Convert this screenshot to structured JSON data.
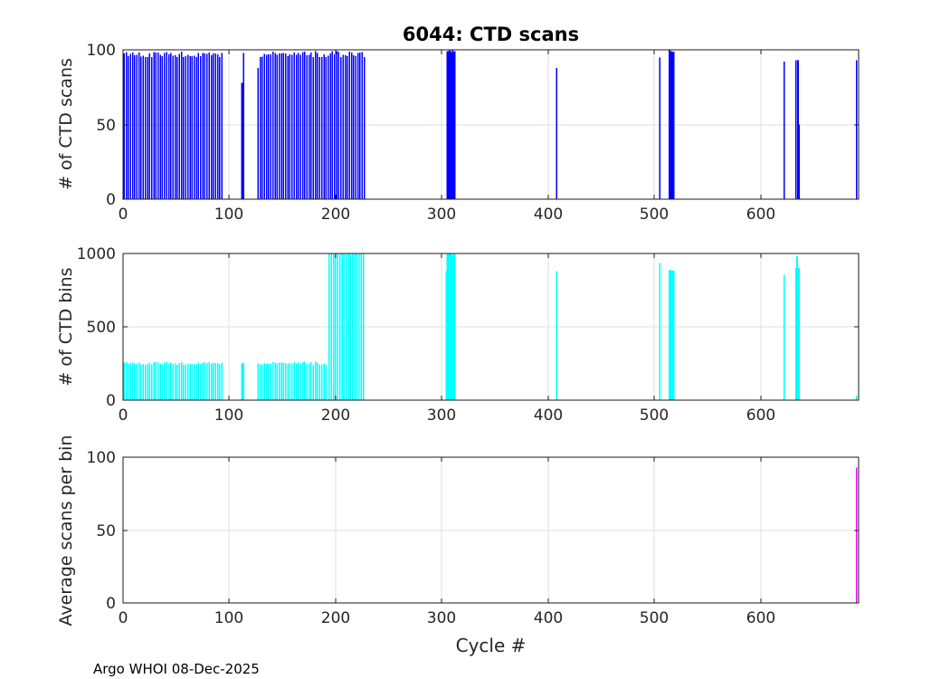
{
  "title": "6044: CTD scans",
  "x_axis": {
    "label": "Cycle #",
    "ticks": [
      0,
      100,
      200,
      300,
      400,
      500,
      600
    ],
    "min": 0,
    "max": 692
  },
  "footer": "Argo WHOI 08-Dec-2025",
  "colors": {
    "scans": "#0000ff",
    "bins": "#00ffff",
    "avg": "#ff00ff",
    "grid": "#dfdfdf",
    "axis": "#1a1a1a",
    "tick_label": "#262626"
  },
  "chart_data": [
    {
      "type": "bar",
      "series": "ctd-scans",
      "ylabel": "# of CTD scans",
      "ylim": [
        0,
        100
      ],
      "yticks": [
        0,
        50,
        100
      ],
      "color": "#0000ff",
      "runs": [
        {
          "from": 1,
          "to": 93,
          "step": 2,
          "value": 97,
          "vary": 2
        },
        {
          "from": 129,
          "to": 227,
          "step": 2,
          "value": 97,
          "vary": 2
        },
        {
          "from": 305,
          "to": 312,
          "step": 1,
          "value": 99,
          "vary": 1
        },
        {
          "from": 514,
          "to": 518,
          "step": 1,
          "value": 99,
          "vary": 1
        }
      ],
      "bars": [
        [
          112,
          78
        ],
        [
          113.5,
          98
        ],
        [
          127,
          88
        ],
        [
          408,
          88
        ],
        [
          505,
          95
        ],
        [
          622,
          92
        ],
        [
          633,
          93
        ],
        [
          635,
          93
        ],
        [
          636,
          50
        ],
        [
          690,
          93
        ]
      ]
    },
    {
      "type": "bar",
      "series": "ctd-bins",
      "ylabel": "# of CTD bins",
      "ylim": [
        0,
        1000
      ],
      "yticks": [
        0,
        500,
        1000
      ],
      "color": "#00ffff",
      "runs": [
        {
          "from": 1,
          "to": 93,
          "step": 2,
          "value": 252,
          "vary": 10
        },
        {
          "from": 129,
          "to": 192,
          "step": 2,
          "value": 252,
          "vary": 10
        },
        {
          "from": 194,
          "to": 227,
          "step": 2,
          "value": 1000,
          "vary": 0
        },
        {
          "from": 305,
          "to": 312,
          "step": 1,
          "value": 995,
          "vary": 8
        },
        {
          "from": 514,
          "to": 518,
          "step": 1,
          "value": 885,
          "vary": 6
        }
      ],
      "bars": [
        [
          112,
          250
        ],
        [
          113.5,
          255
        ],
        [
          127,
          250
        ],
        [
          304,
          880
        ],
        [
          408,
          880
        ],
        [
          505,
          935
        ],
        [
          622,
          855
        ],
        [
          633,
          900
        ],
        [
          634,
          980
        ],
        [
          635,
          900
        ],
        [
          636,
          900
        ],
        [
          690,
          30
        ]
      ]
    },
    {
      "type": "bar",
      "series": "average-scans-per-bin",
      "ylabel": "Average scans per bin",
      "ylim": [
        0,
        100
      ],
      "yticks": [
        0,
        50,
        100
      ],
      "color": "#ff00ff",
      "runs": [],
      "bars": [
        [
          690,
          93
        ]
      ]
    }
  ]
}
